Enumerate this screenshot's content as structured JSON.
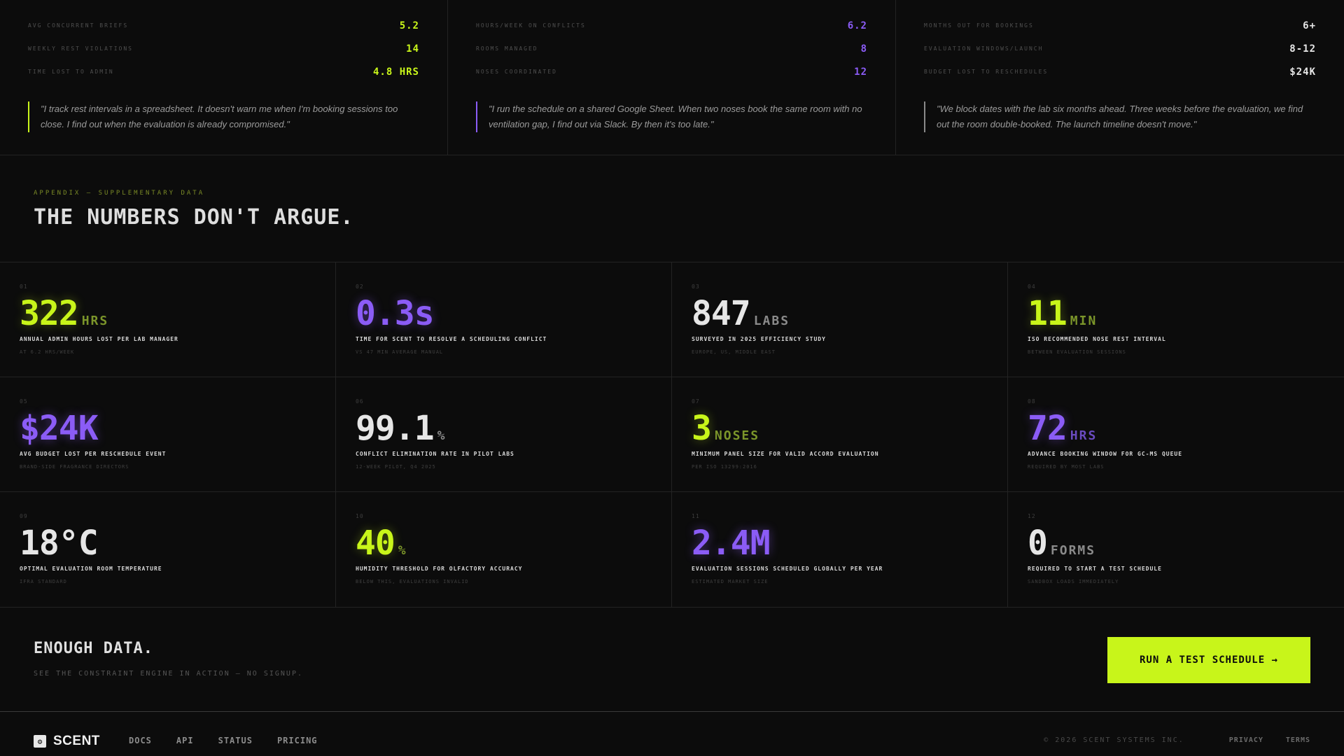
{
  "personas": [
    {
      "accent": "#c8f51a",
      "stats": [
        {
          "label": "AVG CONCURRENT BRIEFS",
          "value": "5.2"
        },
        {
          "label": "WEEKLY REST VIOLATIONS",
          "value": "14"
        },
        {
          "label": "TIME LOST TO ADMIN",
          "value": "4.8 HRS"
        }
      ],
      "quote": "\"I track rest intervals in a spreadsheet. It doesn't warn me when I'm booking sessions too close. I find out when the evaluation is already compromised.\""
    },
    {
      "accent": "#8b5cf6",
      "stats": [
        {
          "label": "HOURS/WEEK ON CONFLICTS",
          "value": "6.2"
        },
        {
          "label": "ROOMS MANAGED",
          "value": "8"
        },
        {
          "label": "NOSES COORDINATED",
          "value": "12"
        }
      ],
      "quote": "\"I run the schedule on a shared Google Sheet. When two noses book the same room with no ventilation gap, I find out via Slack. By then it's too late.\""
    },
    {
      "accent": "#e6e6e6",
      "stats": [
        {
          "label": "MONTHS OUT FOR BOOKINGS",
          "value": "6+"
        },
        {
          "label": "EVALUATION WINDOWS/LAUNCH",
          "value": "8-12"
        },
        {
          "label": "BUDGET LOST TO RESCHEDULES",
          "value": "$24K"
        }
      ],
      "quote": "\"We block dates with the lab six months ahead. Three weeks before the evaluation, we find out the room double-booked. The launch timeline doesn't move.\""
    }
  ],
  "appendix": {
    "eyebrow": "APPENDIX — SUPPLEMENTARY DATA",
    "title": "THE NUMBERS DON'T ARGUE."
  },
  "stats": [
    {
      "index": "01",
      "value": "322",
      "unit": "HRS",
      "color": "green",
      "label": "ANNUAL ADMIN HOURS LOST PER LAB MANAGER",
      "sub": "AT 6.2 HRS/WEEK"
    },
    {
      "index": "02",
      "value": "0.3s",
      "unit": "",
      "color": "purple",
      "label": "TIME FOR SCENT TO RESOLVE A SCHEDULING CONFLICT",
      "sub": "VS 47 MIN AVERAGE MANUAL"
    },
    {
      "index": "03",
      "value": "847",
      "unit": "LABS",
      "color": "white",
      "label": "SURVEYED IN 2025 EFFICIENCY STUDY",
      "sub": "EUROPE, US, MIDDLE EAST"
    },
    {
      "index": "04",
      "value": "11",
      "unit": "MIN",
      "color": "green",
      "label": "ISO RECOMMENDED NOSE REST INTERVAL",
      "sub": "BETWEEN EVALUATION SESSIONS"
    },
    {
      "index": "05",
      "value": "$24K",
      "unit": "",
      "color": "purple",
      "label": "AVG BUDGET LOST PER RESCHEDULE EVENT",
      "sub": "BRAND-SIDE FRAGRANCE DIRECTORS"
    },
    {
      "index": "06",
      "value": "99.1",
      "unit": "%",
      "color": "white",
      "label": "CONFLICT ELIMINATION RATE IN PILOT LABS",
      "sub": "12-WEEK PILOT, Q4 2025"
    },
    {
      "index": "07",
      "value": "3",
      "unit": "NOSES",
      "color": "green",
      "label": "MINIMUM PANEL SIZE FOR VALID ACCORD EVALUATION",
      "sub": "PER ISO 13299:2016"
    },
    {
      "index": "08",
      "value": "72",
      "unit": "HRS",
      "color": "purple",
      "label": "ADVANCE BOOKING WINDOW FOR GC-MS QUEUE",
      "sub": "REQUIRED BY MOST LABS"
    },
    {
      "index": "09",
      "value": "18°C",
      "unit": "",
      "color": "white",
      "label": "OPTIMAL EVALUATION ROOM TEMPERATURE",
      "sub": "IFRA STANDARD"
    },
    {
      "index": "10",
      "value": "40",
      "unit": "%",
      "color": "green",
      "label": "HUMIDITY THRESHOLD FOR OLFACTORY ACCURACY",
      "sub": "BELOW THIS, EVALUATIONS INVALID"
    },
    {
      "index": "11",
      "value": "2.4M",
      "unit": "",
      "color": "purple",
      "label": "EVALUATION SESSIONS SCHEDULED GLOBALLY PER YEAR",
      "sub": "ESTIMATED MARKET SIZE"
    },
    {
      "index": "12",
      "value": "0",
      "unit": "FORMS",
      "color": "white",
      "label": "REQUIRED TO START A TEST SCHEDULE",
      "sub": "SANDBOX LOADS IMMEDIATELY"
    }
  ],
  "cta": {
    "title": "ENOUGH DATA.",
    "subtitle": "SEE THE CONSTRAINT ENGINE IN ACTION — NO SIGNUP.",
    "button": "RUN A TEST SCHEDULE →"
  },
  "footer": {
    "logo_icon": "gear-icon",
    "brand": "SCENT",
    "nav": [
      "DOCS",
      "API",
      "STATUS",
      "PRICING"
    ],
    "copyright": "© 2026 SCENT SYSTEMS INC.",
    "links": [
      "PRIVACY",
      "TERMS"
    ]
  },
  "colors": {
    "green": "#c8f51a",
    "purple": "#8b5cf6",
    "white": "#e6e6e6",
    "background": "#0c0c0c"
  }
}
